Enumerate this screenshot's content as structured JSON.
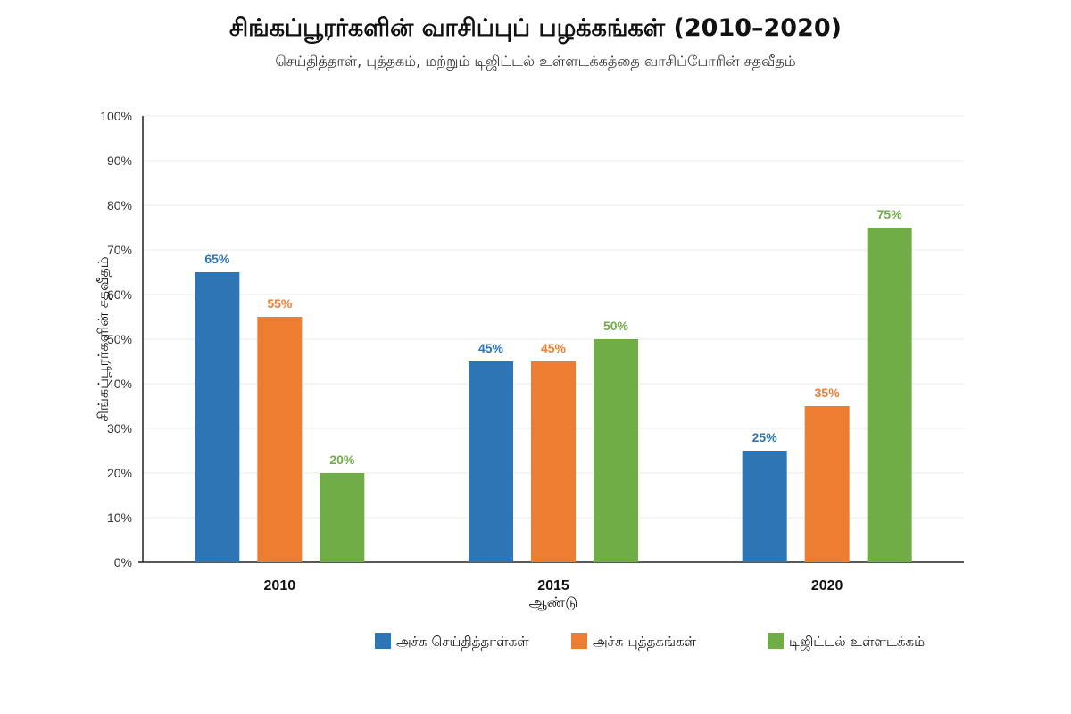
{
  "chart_data": {
    "type": "bar",
    "title": "சிங்கப்பூரர்களின் வாசிப்புப் பழக்கங்கள் (2010–2020)",
    "subtitle": "செய்தித்தாள், புத்தகம், மற்றும் டிஜிட்டல் உள்ளடக்கத்தை வாசிப்போரின் சதவீதம்",
    "xlabel": "ஆண்டு",
    "ylabel": "சிங்கப்பூரர்களின் சதவீதம்",
    "ylim": [
      0,
      100
    ],
    "yticks": [
      "0%",
      "10%",
      "20%",
      "30%",
      "40%",
      "50%",
      "60%",
      "70%",
      "80%",
      "90%",
      "100%"
    ],
    "categories": [
      "2010",
      "2015",
      "2020"
    ],
    "series": [
      {
        "name": "அச்சு செய்தித்தாள்கள்",
        "values": [
          65,
          45,
          25
        ],
        "labels": [
          "65%",
          "45%",
          "25%"
        ],
        "color": "#2e75b6"
      },
      {
        "name": "அச்சு புத்தகங்கள்",
        "values": [
          55,
          45,
          35
        ],
        "labels": [
          "55%",
          "45%",
          "35%"
        ],
        "color": "#ed7d31"
      },
      {
        "name": "டிஜிட்டல் உள்ளடக்கம்",
        "values": [
          20,
          50,
          75
        ],
        "labels": [
          "20%",
          "50%",
          "75%"
        ],
        "color": "#70ad47"
      }
    ],
    "grid": true,
    "legend_position": "bottom-right"
  }
}
